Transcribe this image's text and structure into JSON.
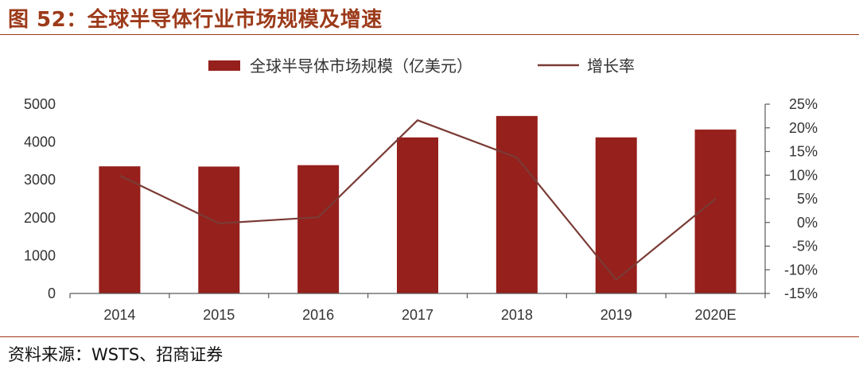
{
  "figure": {
    "title": "图 52：全球半导体行业市场规模及增速",
    "source": "资料来源：WSTS、招商证券"
  },
  "colors": {
    "accent": "#9c3a1a",
    "bar": "#96201c",
    "line": "#7a3b35",
    "axis": "#595959",
    "text": "#333333"
  },
  "chart_data": {
    "type": "bar",
    "categories": [
      "2014",
      "2015",
      "2016",
      "2017",
      "2018",
      "2019",
      "2020E"
    ],
    "series": [
      {
        "name": "全球半导体市场规模（亿美元）",
        "type": "bar",
        "axis": "left",
        "values": [
          3358,
          3352,
          3389,
          4122,
          4688,
          4123,
          4330
        ]
      },
      {
        "name": "增长率",
        "type": "line",
        "axis": "right",
        "values": [
          9.9,
          -0.2,
          1.1,
          21.6,
          13.7,
          -12.1,
          5.0
        ]
      }
    ],
    "y_left": {
      "ylim": [
        0,
        5000
      ],
      "ticks": [
        0,
        1000,
        2000,
        3000,
        4000,
        5000
      ],
      "tick_labels": [
        "0",
        "1000",
        "2000",
        "3000",
        "4000",
        "5000"
      ]
    },
    "y_right": {
      "ylim": [
        -15,
        25
      ],
      "ticks": [
        -15,
        -10,
        -5,
        0,
        5,
        10,
        15,
        20,
        25
      ],
      "tick_labels": [
        "-15%",
        "-10%",
        "-5%",
        "0%",
        "5%",
        "10%",
        "15%",
        "20%",
        "25%"
      ]
    },
    "legend_position": "top-center",
    "grid": false
  }
}
